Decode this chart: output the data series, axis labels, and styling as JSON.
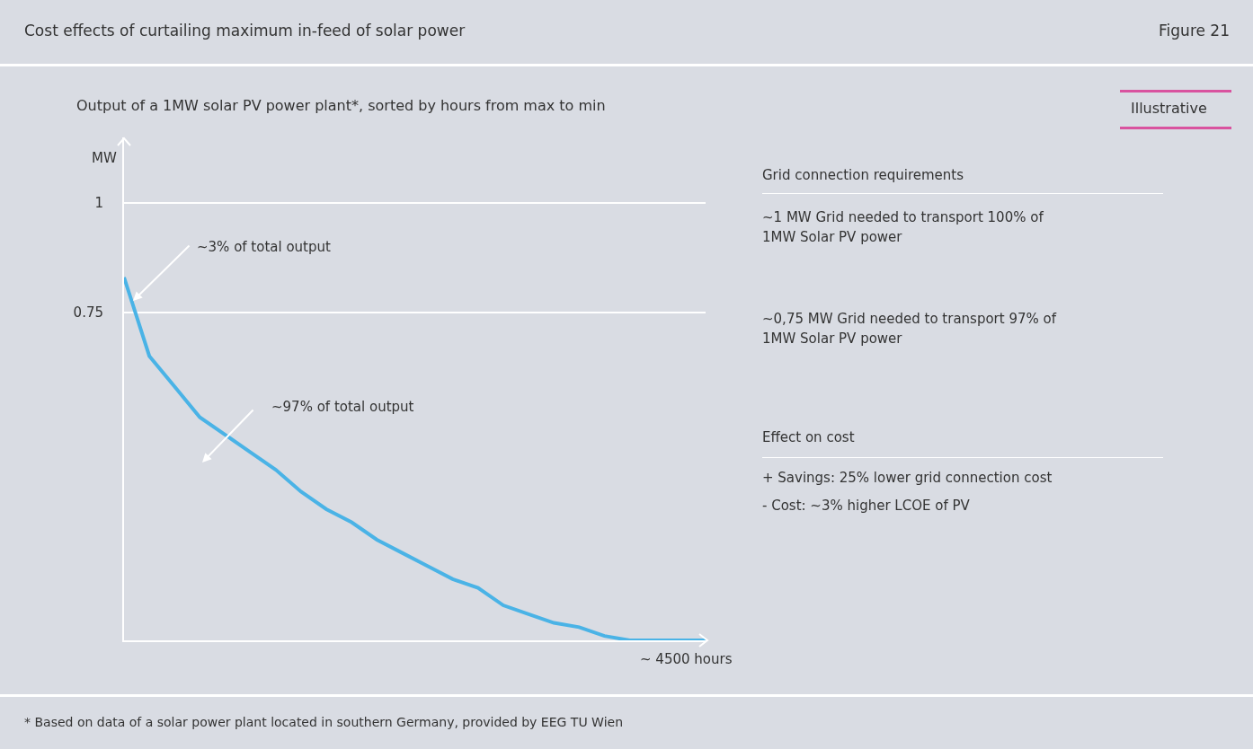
{
  "chart_data": {
    "type": "line",
    "title": "Cost effects of curtailing maximum in-feed of solar power",
    "subtitle": "Output of a 1MW solar PV power plant*, sorted by hours from max to min",
    "xlabel": "~ 4500 hours",
    "ylabel": "MW",
    "categories": [
      null,
      null,
      null,
      null,
      null,
      null,
      null,
      null,
      null,
      null,
      null,
      null,
      null,
      null,
      null,
      null,
      null,
      null,
      null,
      null,
      null,
      null,
      null,
      null
    ],
    "series": [
      {
        "color": "#4ab3e6",
        "values": [
          0.83,
          0.65,
          0.58,
          0.51,
          0.47,
          0.43,
          0.39,
          0.34,
          0.3,
          0.27,
          0.23,
          0.2,
          0.17,
          0.14,
          0.12,
          0.08,
          0.06,
          0.04,
          0.03,
          0.01,
          0.0,
          0.0,
          0.0,
          0.0
        ]
      }
    ],
    "ylim": [
      0,
      1.15
    ],
    "yticks": [
      0.75,
      1
    ],
    "grid": "y",
    "marker": "none",
    "line_style": "solid",
    "annotations": [
      "Figure 21",
      "Illustrative",
      "~3% of total output",
      "~97% of total output",
      "Grid connection requirements",
      "~1 MW Grid needed to transport 100% of 1MW Solar PV power",
      "~0,75 MW Grid needed to transport 97% of 1MW Solar PV power",
      "Effect on cost",
      "+ Savings: 25% lower grid connection cost",
      "- Cost: ~3% higher LCOE of PV",
      "* Based on data of a solar power plant located in southern Germany, provided by EEG TU Wien"
    ]
  }
}
